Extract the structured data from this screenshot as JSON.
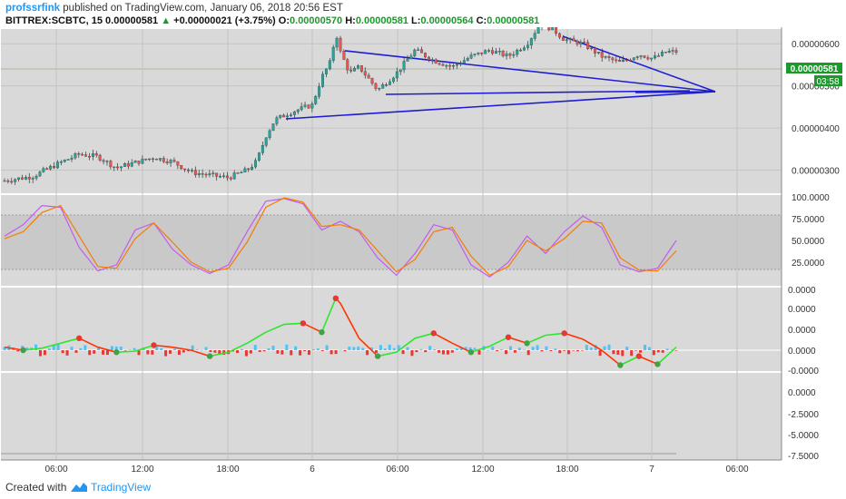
{
  "header": {
    "author": "profssrfink",
    "published_text": "published on TradingView.com, January 06, 2018 20:56 EST",
    "symbol": "BITTREX:SCBTC, 15",
    "last": "0.00000581",
    "change_arrow": "▲",
    "change": "+0.00000021 (+3.75%)",
    "o_label": "O:",
    "o_value": "0.00000570",
    "h_label": "H:",
    "h_value": "0.00000581",
    "l_label": "L:",
    "l_value": "0.00000564",
    "c_label": "C:",
    "c_value": "0.00000581"
  },
  "footer": {
    "created_with": "Created with",
    "brand": "TradingView"
  },
  "colors": {
    "up": "#26a69a",
    "down": "#ef5350",
    "trendline": "#1c1cd4",
    "stoch_k": "#c25cf0",
    "stoch_d": "#f57c00",
    "osc_up": "#2ee62e",
    "osc_down": "#ff3300",
    "last_badge": "#1a9a2a"
  },
  "chart_data": [
    {
      "type": "candlestick",
      "pane": "price",
      "x_ticks": [
        "06:00",
        "12:00",
        "18:00",
        "6",
        "06:00",
        "12:00",
        "18:00",
        "7",
        "06:00"
      ],
      "y_ticks": [
        "0.00000600",
        "0.00000500",
        "0.00000400",
        "0.00000300"
      ],
      "ylim": [
        2.45e-06,
        6.35e-06
      ],
      "last_price_label": "0.00000581",
      "countdown_label": "03:58",
      "close_path": [
        [
          0,
          2.75e-06
        ],
        [
          3,
          2.85e-06
        ],
        [
          6,
          3.18e-06
        ],
        [
          8,
          3.38e-06
        ],
        [
          10,
          3.32e-06
        ],
        [
          12,
          3.05e-06
        ],
        [
          14,
          3.18e-06
        ],
        [
          16,
          3.3e-06
        ],
        [
          18,
          3.2e-06
        ],
        [
          20,
          2.95e-06
        ],
        [
          22,
          2.88e-06
        ],
        [
          24,
          2.82e-06
        ],
        [
          26,
          3e-06
        ],
        [
          27,
          3.2e-06
        ],
        [
          28,
          3.8e-06
        ],
        [
          29,
          4.2e-06
        ],
        [
          31,
          4.4e-06
        ],
        [
          33,
          4.55e-06
        ],
        [
          34,
          5.2e-06
        ],
        [
          35,
          5.6e-06
        ],
        [
          35.5,
          6.3e-06
        ],
        [
          36,
          5.8e-06
        ],
        [
          37,
          5.3e-06
        ],
        [
          38,
          5.45e-06
        ],
        [
          40,
          4.9e-06
        ],
        [
          42,
          5.3e-06
        ],
        [
          44,
          5.85e-06
        ],
        [
          46,
          5.6e-06
        ],
        [
          48,
          5.45e-06
        ],
        [
          50,
          5.7e-06
        ],
        [
          52,
          5.85e-06
        ],
        [
          54,
          5.7e-06
        ],
        [
          56,
          6e-06
        ],
        [
          57.5,
          6.5e-06
        ],
        [
          59,
          6.3e-06
        ],
        [
          60,
          6.1e-06
        ],
        [
          62,
          6e-06
        ],
        [
          64,
          5.7e-06
        ],
        [
          66,
          5.55e-06
        ],
        [
          68,
          5.75e-06
        ],
        [
          69.5,
          5.65e-06
        ],
        [
          71,
          5.81e-06
        ]
      ]
    },
    {
      "type": "line",
      "pane": "stochastic",
      "y_ticks": [
        "100.0000",
        "75.0000",
        "50.0000",
        "25.0000"
      ],
      "ylim": [
        0,
        100
      ],
      "band": [
        20,
        80
      ],
      "k_points": [
        [
          0,
          55
        ],
        [
          2,
          68
        ],
        [
          4,
          90
        ],
        [
          6,
          88
        ],
        [
          8,
          42
        ],
        [
          10,
          15
        ],
        [
          12,
          22
        ],
        [
          14,
          62
        ],
        [
          16,
          70
        ],
        [
          18,
          40
        ],
        [
          20,
          22
        ],
        [
          22,
          12
        ],
        [
          24,
          22
        ],
        [
          26,
          60
        ],
        [
          28,
          95
        ],
        [
          30,
          98
        ],
        [
          32,
          92
        ],
        [
          34,
          62
        ],
        [
          36,
          72
        ],
        [
          38,
          60
        ],
        [
          40,
          30
        ],
        [
          42,
          10
        ],
        [
          44,
          35
        ],
        [
          46,
          68
        ],
        [
          48,
          62
        ],
        [
          50,
          22
        ],
        [
          52,
          8
        ],
        [
          54,
          25
        ],
        [
          56,
          55
        ],
        [
          58,
          35
        ],
        [
          60,
          60
        ],
        [
          62,
          78
        ],
        [
          64,
          65
        ],
        [
          66,
          22
        ],
        [
          68,
          14
        ],
        [
          70,
          18
        ],
        [
          72,
          50
        ]
      ],
      "d_points": [
        [
          0,
          52
        ],
        [
          2,
          60
        ],
        [
          4,
          82
        ],
        [
          6,
          90
        ],
        [
          8,
          55
        ],
        [
          10,
          20
        ],
        [
          12,
          18
        ],
        [
          14,
          52
        ],
        [
          16,
          70
        ],
        [
          18,
          48
        ],
        [
          20,
          25
        ],
        [
          22,
          14
        ],
        [
          24,
          18
        ],
        [
          26,
          48
        ],
        [
          28,
          88
        ],
        [
          30,
          99
        ],
        [
          32,
          94
        ],
        [
          34,
          66
        ],
        [
          36,
          68
        ],
        [
          38,
          62
        ],
        [
          40,
          38
        ],
        [
          42,
          14
        ],
        [
          44,
          28
        ],
        [
          46,
          60
        ],
        [
          48,
          65
        ],
        [
          50,
          32
        ],
        [
          52,
          10
        ],
        [
          54,
          20
        ],
        [
          56,
          50
        ],
        [
          58,
          38
        ],
        [
          60,
          52
        ],
        [
          62,
          72
        ],
        [
          64,
          70
        ],
        [
          66,
          30
        ],
        [
          68,
          16
        ],
        [
          70,
          15
        ],
        [
          72,
          38
        ]
      ]
    },
    {
      "type": "line",
      "pane": "oscillator",
      "y_ticks": [
        "0.0000",
        "0.0000",
        "0.0000",
        "0.0000",
        "-0.0000"
      ],
      "ylim": [
        -1,
        3
      ],
      "points": [
        [
          0,
          0.15
        ],
        [
          2,
          0.0
        ],
        [
          4,
          0.1
        ],
        [
          6,
          0.35
        ],
        [
          8,
          0.6
        ],
        [
          10,
          0.15
        ],
        [
          12,
          -0.1
        ],
        [
          14,
          -0.05
        ],
        [
          16,
          0.25
        ],
        [
          18,
          0.15
        ],
        [
          20,
          0.0
        ],
        [
          22,
          -0.3
        ],
        [
          24,
          -0.1
        ],
        [
          26,
          0.35
        ],
        [
          28,
          0.9
        ],
        [
          30,
          1.3
        ],
        [
          32,
          1.35
        ],
        [
          34,
          0.9
        ],
        [
          35.5,
          2.6
        ],
        [
          36,
          2.35
        ],
        [
          38,
          0.6
        ],
        [
          40,
          -0.3
        ],
        [
          42,
          -0.1
        ],
        [
          44,
          0.6
        ],
        [
          46,
          0.85
        ],
        [
          48,
          0.35
        ],
        [
          50,
          -0.1
        ],
        [
          52,
          0.2
        ],
        [
          54,
          0.65
        ],
        [
          56,
          0.35
        ],
        [
          58,
          0.75
        ],
        [
          60,
          0.85
        ],
        [
          62,
          0.55
        ],
        [
          64,
          0.0
        ],
        [
          66,
          -0.75
        ],
        [
          68,
          -0.3
        ],
        [
          70,
          -0.7
        ],
        [
          72,
          0.15
        ]
      ]
    },
    {
      "type": "line",
      "pane": "empty",
      "y_ticks": [
        "0.0000",
        "-2.5000",
        "-5.0000",
        "-7.5000"
      ]
    }
  ]
}
